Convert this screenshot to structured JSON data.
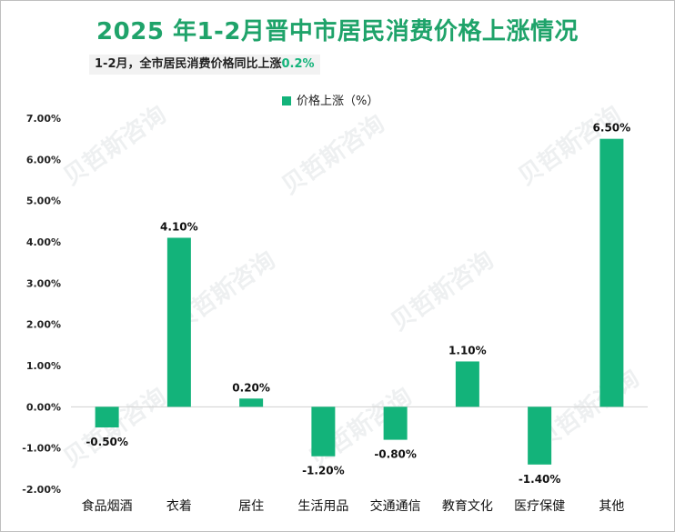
{
  "title": "2025 年1-2月晋中市居民消费价格上涨情况",
  "subtitle": {
    "text": "1-2月，全市居民消费价格同比上涨",
    "highlight": "0.2%"
  },
  "watermark": "贝哲斯咨询",
  "chart_data": {
    "type": "bar",
    "categories": [
      "食品烟酒",
      "衣着",
      "居住",
      "生活用品",
      "交通通信",
      "教育文化",
      "医疗保健",
      "其他"
    ],
    "series": [
      {
        "name": "价格上涨（%）",
        "values": [
          -0.5,
          4.1,
          0.2,
          -1.2,
          -0.8,
          1.1,
          -1.4,
          6.5
        ]
      }
    ],
    "data_labels": [
      "-0.50%",
      "4.10%",
      "0.20%",
      "-1.20%",
      "-0.80%",
      "1.10%",
      "-1.40%",
      "6.50%"
    ],
    "ylim": [
      -2.0,
      7.0
    ],
    "yticks": [
      -2.0,
      -1.0,
      0.0,
      1.0,
      2.0,
      3.0,
      4.0,
      5.0,
      6.0,
      7.0
    ],
    "ytick_labels": [
      "-2.00%",
      "-1.00%",
      "0.00%",
      "1.00%",
      "2.00%",
      "3.00%",
      "4.00%",
      "5.00%",
      "6.00%",
      "7.00%"
    ],
    "legend_position": "top-center",
    "grid": false,
    "color": "#13b37a"
  }
}
